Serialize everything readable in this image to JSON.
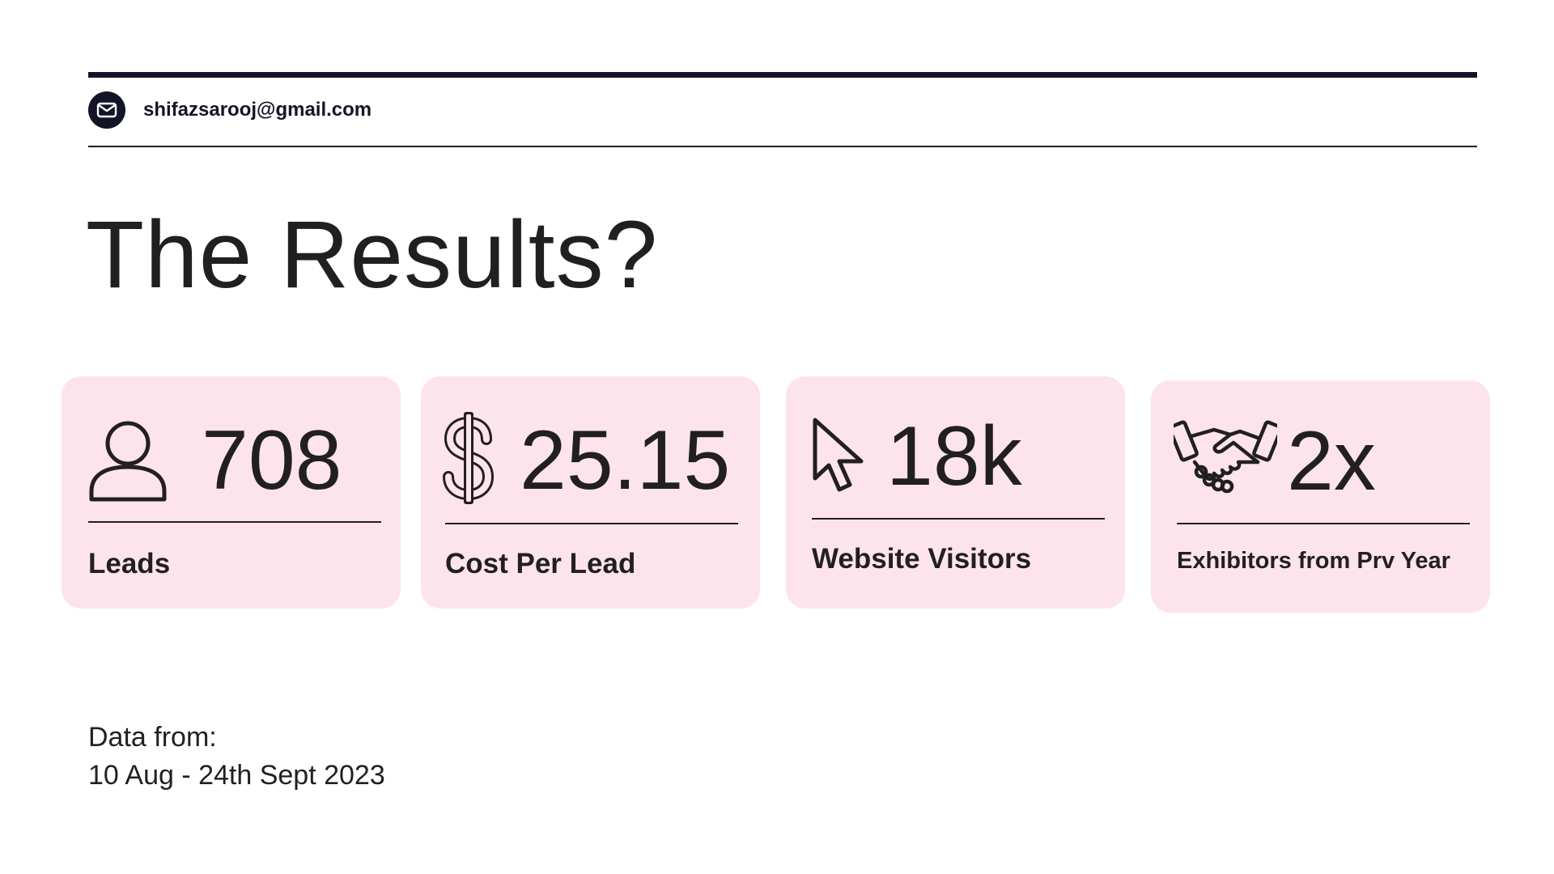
{
  "header": {
    "email": "shifazsarooj@gmail.com",
    "email_icon": "mail-icon"
  },
  "title": "The Results?",
  "cards": [
    {
      "icon": "user-icon",
      "value": "708",
      "label": "Leads"
    },
    {
      "icon": "dollar-icon",
      "value": "25.15",
      "label": "Cost Per Lead"
    },
    {
      "icon": "cursor-icon",
      "value": "18k",
      "label": "Website Visitors"
    },
    {
      "icon": "handshake-icon",
      "value": "2x",
      "label": "Exhibitors from Prv Year"
    }
  ],
  "footer": {
    "line1": "Data from:",
    "line2": "10 Aug - 24th Sept 2023"
  },
  "colors": {
    "card_bg": "#fde4ec",
    "dark": "#141428",
    "text": "#221f22"
  }
}
